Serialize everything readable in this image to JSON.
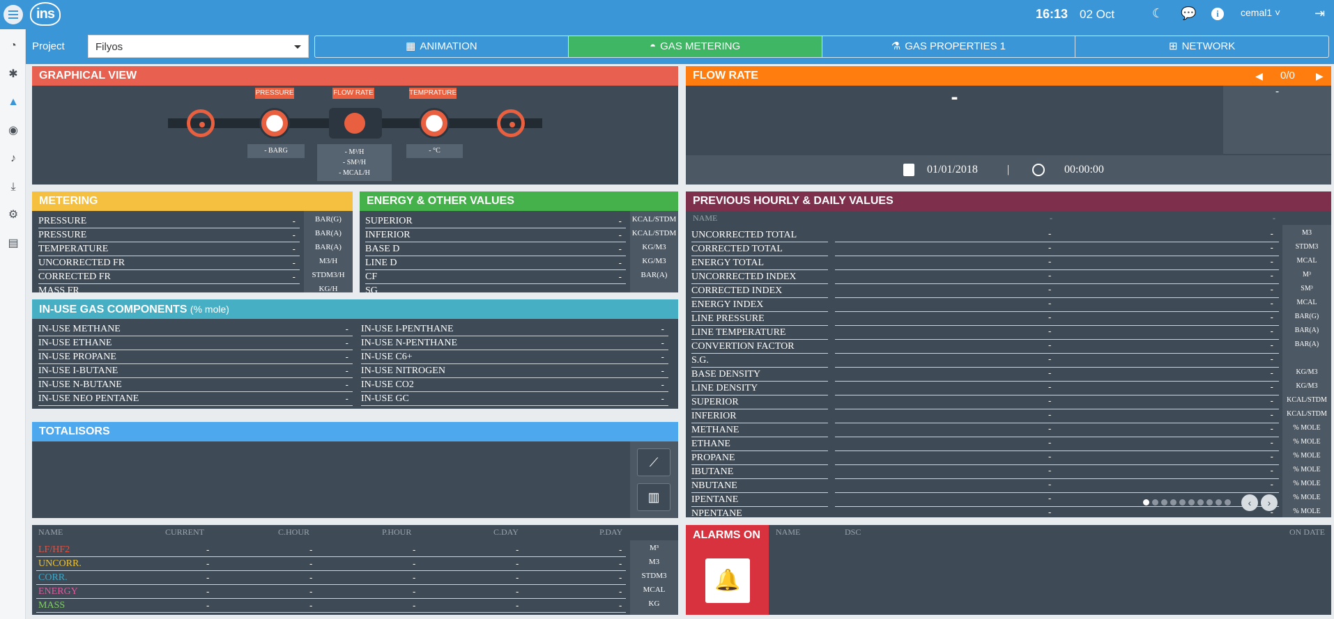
{
  "header": {
    "time": "16:13",
    "date": "02 Oct",
    "user": "cemal1",
    "logo_text": "ins"
  },
  "project": {
    "label": "Project",
    "value": "Filyos"
  },
  "tabs": [
    "ANIMATION",
    "GAS METERING",
    "GAS PROPERTIES 1",
    "NETWORK"
  ],
  "graphical": {
    "title": "GRAPHICAL VIEW",
    "tags": [
      "PRESSURE",
      "FLOW RATE",
      "TEMPRATURE"
    ],
    "pressure": "- BARG",
    "flow": [
      "- M³/H",
      "- SM³/H",
      "- MCAL/H"
    ],
    "temp": "- °C"
  },
  "flow_rate": {
    "title": "FLOW RATE",
    "pager": "0/0",
    "value": "-",
    "side": "-",
    "date": "01/01/2018",
    "sep": "|",
    "time": "00:00:00"
  },
  "metering": {
    "title": "METERING",
    "rows": [
      [
        "PRESSURE",
        "-",
        "BAR(G)"
      ],
      [
        "PRESSURE",
        "-",
        "BAR(A)"
      ],
      [
        "TEMPERATURE",
        "-",
        "BAR(A)"
      ],
      [
        "UNCORRECTED FR",
        "-",
        "M3/H"
      ],
      [
        "CORRECTED FR",
        "-",
        "STDM3/H"
      ],
      [
        "MASS FR",
        "",
        "KG/H"
      ]
    ]
  },
  "energy": {
    "title": "ENERGY & OTHER VALUES",
    "rows": [
      [
        "SUPERIOR",
        "-",
        "KCAL/STDM"
      ],
      [
        "INFERIOR",
        "-",
        "KCAL/STDM"
      ],
      [
        "BASE D",
        "-",
        "KG/M3"
      ],
      [
        "LINE D",
        "-",
        "KG/M3"
      ],
      [
        "CF",
        "-",
        "BAR(A)"
      ],
      [
        "SG",
        "",
        ""
      ]
    ]
  },
  "components": {
    "title": "IN-USE GAS COMPONENTS",
    "subtitle": "(% mole)",
    "left": [
      [
        "IN-USE METHANE",
        "-"
      ],
      [
        "IN-USE ETHANE",
        "-"
      ],
      [
        "IN-USE PROPANE",
        "-"
      ],
      [
        "IN-USE I-BUTANE",
        "-"
      ],
      [
        "IN-USE N-BUTANE",
        "-"
      ],
      [
        "IN-USE NEO PENTANE",
        "-"
      ]
    ],
    "right": [
      [
        "IN-USE I-PENTHANE",
        "-"
      ],
      [
        "IN-USE N-PENTHANE",
        "-"
      ],
      [
        "IN-USE C6+",
        "-"
      ],
      [
        "IN-USE NITROGEN",
        "-"
      ],
      [
        "IN-USE CO2",
        "-"
      ],
      [
        "IN-USE GC",
        "-"
      ]
    ]
  },
  "totalisors": {
    "title": "TOTALISORS",
    "headers": [
      "NAME",
      "CURRENT",
      "C.HOUR",
      "P.HOUR",
      "C.DAY",
      "P.DAY"
    ],
    "rows": [
      {
        "name": "LF/HF2",
        "color": "#e8503f",
        "vals": [
          "-",
          "-",
          "-",
          "-",
          "-"
        ],
        "unit": "M³"
      },
      {
        "name": "UNCORR.",
        "color": "#f0c330",
        "vals": [
          "-",
          "-",
          "-",
          "-",
          "-"
        ],
        "unit": "M3"
      },
      {
        "name": "CORR.",
        "color": "#3fa9c9",
        "vals": [
          "-",
          "-",
          "-",
          "-",
          "-"
        ],
        "unit": "STDM3"
      },
      {
        "name": "ENERGY",
        "color": "#e05a9e",
        "vals": [
          "-",
          "-",
          "-",
          "-",
          "-"
        ],
        "unit": "MCAL"
      },
      {
        "name": "MASS",
        "color": "#7ed35a",
        "vals": [
          "-",
          "-",
          "-",
          "-",
          "-"
        ],
        "unit": "KG"
      }
    ]
  },
  "previous": {
    "title": "PREVIOUS HOURLY & DAILY VALUES",
    "header_name": "NAME",
    "header_a": "-",
    "header_b": "-",
    "rows": [
      [
        "UNCORRECTED TOTAL",
        "-",
        "-",
        "M3"
      ],
      [
        "CORRECTED TOTAL",
        "-",
        "-",
        "STDM3"
      ],
      [
        "ENERGY TOTAL",
        "-",
        "-",
        "MCAL"
      ],
      [
        "UNCORRECTED INDEX",
        "-",
        "-",
        "M³"
      ],
      [
        "CORRECTED INDEX",
        "-",
        "-",
        "SM³"
      ],
      [
        "ENERGY INDEX",
        "-",
        "-",
        "MCAL"
      ],
      [
        "LINE PRESSURE",
        "-",
        "-",
        "BAR(G)"
      ],
      [
        "LINE TEMPERATURE",
        "-",
        "-",
        "BAR(A)"
      ],
      [
        "CONVERTION FACTOR",
        "-",
        "-",
        "BAR(A)"
      ],
      [
        "S.G.",
        "-",
        "-",
        ""
      ],
      [
        "BASE DENSITY",
        "-",
        "-",
        "KG/M3"
      ],
      [
        "LINE DENSITY",
        "-",
        "-",
        "KG/M3"
      ],
      [
        "SUPERIOR",
        "-",
        "-",
        "KCAL/STDM"
      ],
      [
        "INFERIOR",
        "-",
        "-",
        "KCAL/STDM"
      ],
      [
        "METHANE",
        "-",
        "-",
        "% MOLE"
      ],
      [
        "ETHANE",
        "-",
        "-",
        "% MOLE"
      ],
      [
        "PROPANE",
        "-",
        "-",
        "% MOLE"
      ],
      [
        "IBUTANE",
        "-",
        "-",
        "% MOLE"
      ],
      [
        "NBUTANE",
        "-",
        "-",
        "% MOLE"
      ],
      [
        "IPENTANE",
        "-",
        "-",
        "% MOLE"
      ],
      [
        "NPENTANE",
        "-",
        "-",
        "% MOLE"
      ]
    ]
  },
  "alarms": {
    "title": "ALARMS ON",
    "headers": [
      "NAME",
      "DSC",
      "ON DATE"
    ]
  },
  "colors": {
    "graphical": "#e8604f",
    "flow": "#ff7d0e",
    "metering": "#f5bf3f",
    "energy": "#45b14a",
    "components": "#47afc3",
    "totalisors": "#4ea8ee",
    "previous": "#7d2f4c",
    "alarms": "#d9323f"
  }
}
